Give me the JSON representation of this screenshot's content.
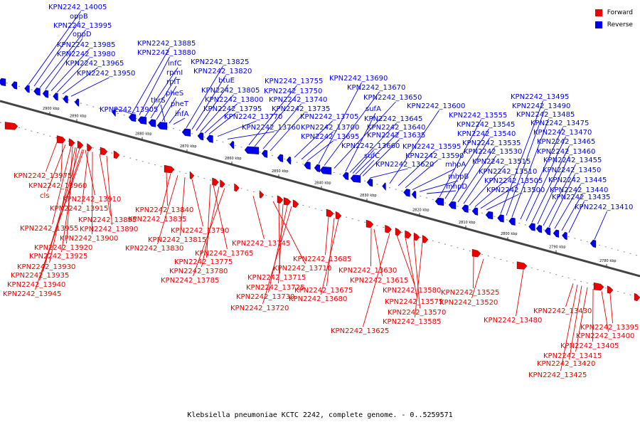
{
  "caption": "Klebsiella pneumoniae KCTC 2242, complete genome. - 0..5259571",
  "colors": {
    "forward": "#ee0000",
    "reverse": "#0000ee",
    "axis": "#666666",
    "tick_text": "#000000"
  },
  "legend": [
    {
      "label": "Forward",
      "color": "#ee0000"
    },
    {
      "label": "Reverse",
      "color": "#0000ee"
    }
  ],
  "coordinate_ticks": [
    "2900 kbp",
    "2890 kbp",
    "2880 kbp",
    "2870 kbp",
    "2860 kbp",
    "2850 kbp",
    "2840 kbp",
    "2830 kbp",
    "2820 kbp",
    "2810 kbp",
    "2800 kbp",
    "2790 kbp",
    "2780 kbp"
  ],
  "reverse_labels": [
    "KPN2242_14005",
    "oppB",
    "KPN2242_13995",
    "oppD",
    "KPN2242_13985",
    "KPN2242_13980",
    "KPN2242_13965",
    "KPN2242_13950",
    "KPN2242_13905",
    "KPN2242_13885",
    "KPN2242_13880",
    "infC",
    "rpmI",
    "rplT",
    "pheS",
    "thrS",
    "pheT",
    "ihfA",
    "KPN2242_13825",
    "KPN2242_13820",
    "btuE",
    "KPN2242_13805",
    "KPN2242_13800",
    "KPN2242_13795",
    "KPN2242_13770",
    "KPN2242_13760",
    "KPN2242_13755",
    "KPN2242_13750",
    "KPN2242_13740",
    "KPN2242_13735",
    "KPN2242_13705",
    "KPN2242_13700",
    "KPN2242_13695",
    "KPN2242_13690",
    "KPN2242_13670",
    "KPN2242_13650",
    "sufA",
    "KPN2242_13645",
    "KPN2242_13640",
    "KPN2242_13635",
    "KPN2242_13660",
    "sufC",
    "KPN2242_13620",
    "KPN2242_13600",
    "KPN2242_13595",
    "KPN2242_13590",
    "mhpA",
    "mhpB",
    "mhpD",
    "KPN2242_13555",
    "KPN2242_13545",
    "KPN2242_13540",
    "KPN2242_13535",
    "KPN2242_13530",
    "KPN2242_13515",
    "KPN2242_13510",
    "KPN2242_13505",
    "KPN2242_13500",
    "KPN2242_13495",
    "KPN2242_13490",
    "KPN2242_13485",
    "KPN2242_13475",
    "KPN2242_13470",
    "KPN2242_13465",
    "KPN2242_13460",
    "KPN2242_13455",
    "KPN2242_13450",
    "KPN2242_13445",
    "KPN2242_13440",
    "KPN2242_13435",
    "KPN2242_13410"
  ],
  "forward_labels": [
    "KPN2242_13975",
    "KPN2242_13960",
    "cls",
    "KPN2242_13910",
    "KPN2242_13915",
    "KPN2242_13955",
    "KPN2242_13895",
    "KPN2242_13890",
    "KPN2242_13900",
    "KPN2242_13920",
    "KPN2242_13925",
    "KPN2242_13930",
    "KPN2242_13935",
    "KPN2242_13940",
    "KPN2242_13945",
    "KPN2242_13840",
    "KPN2242_13835",
    "KPN2242_13790",
    "KPN2242_13815",
    "KPN2242_13830",
    "KPN2242_13765",
    "KPN2242_13775",
    "KPN2242_13780",
    "KPN2242_13785",
    "KPN2242_13745",
    "KPN2242_13710",
    "KPN2242_13715",
    "KPN2242_13725",
    "KPN2242_13730",
    "KPN2242_13720",
    "KPN2242_13685",
    "KPN2242_13675",
    "KPN2242_13680",
    "KPN2242_13630",
    "KPN2242_13615",
    "KPN2242_13625",
    "KPN2242_13580",
    "KPN2242_13575",
    "KPN2242_13570",
    "KPN2242_13585",
    "KPN2242_13525",
    "KPN2242_13520",
    "KPN2242_13480",
    "KPN2242_13430",
    "KPN2242_13395",
    "KPN2242_13400",
    "KPN2242_13405",
    "KPN2242_13415",
    "KPN2242_13420",
    "KPN2242_13425"
  ]
}
